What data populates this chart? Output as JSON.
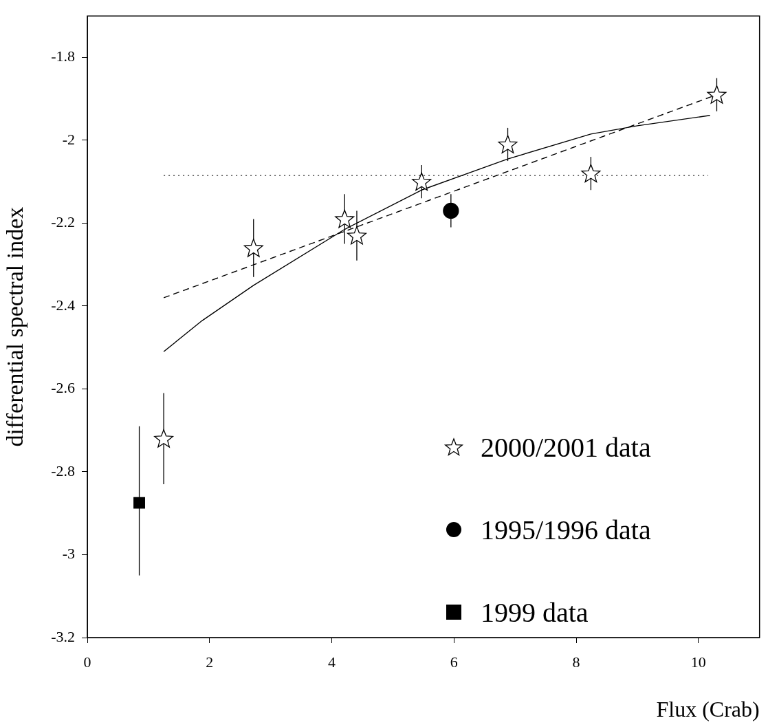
{
  "chart_data": {
    "type": "scatter",
    "xlabel": "Flux (Crab)",
    "ylabel": "differential spectral index",
    "xlim": [
      0,
      11
    ],
    "ylim": [
      -3.2,
      -1.7
    ],
    "xticks": [
      0,
      2,
      4,
      6,
      8,
      10
    ],
    "yticks": [
      -3.2,
      -3,
      -2.8,
      -2.6,
      -2.4,
      -2.2,
      -2,
      -1.8
    ],
    "grid": false,
    "legend": "bottom right",
    "series": [
      {
        "name": "2000/2001 data",
        "marker": "star",
        "color": "#000000",
        "x": [
          1.25,
          2.72,
          4.21,
          4.41,
          5.47,
          6.88,
          8.24,
          10.3
        ],
        "values": [
          -2.72,
          -2.26,
          -2.19,
          -2.23,
          -2.1,
          -2.01,
          -2.08,
          -1.89
        ],
        "errors": [
          [
            -2.83,
            -2.61
          ],
          [
            -2.33,
            -2.19
          ],
          [
            -2.25,
            -2.13
          ],
          [
            -2.29,
            -2.17
          ],
          [
            -2.14,
            -2.06
          ],
          [
            -2.05,
            -1.97
          ],
          [
            -2.12,
            -2.04
          ],
          [
            -1.93,
            -1.85
          ]
        ]
      },
      {
        "name": "1995/1996 data",
        "marker": "circle",
        "color": "#000000",
        "x": [
          5.95
        ],
        "values": [
          -2.17
        ],
        "errors": [
          [
            -2.21,
            -2.13
          ]
        ]
      },
      {
        "name": "1999 data",
        "marker": "square",
        "color": "#000000",
        "x": [
          0.85
        ],
        "values": [
          -2.875
        ],
        "errors": [
          [
            -3.05,
            -2.69
          ]
        ]
      },
      {
        "type": "line",
        "marker": "none",
        "line_style": "solid",
        "color": "#000000",
        "x": [
          1.25,
          1.88,
          2.72,
          4.21,
          5.47,
          6.88,
          8.24,
          9.0,
          10.19
        ],
        "values": [
          -2.51,
          -2.435,
          -2.35,
          -2.215,
          -2.12,
          -2.045,
          -1.985,
          -1.965,
          -1.94
        ]
      },
      {
        "type": "line",
        "marker": "none",
        "line_style": "dashed",
        "color": "#000000",
        "x": [
          1.25,
          10.3
        ],
        "values": [
          -2.38,
          -1.89
        ]
      },
      {
        "type": "line",
        "marker": "none",
        "line_style": "dotted",
        "color": "#555555",
        "x": [
          1.25,
          10.16
        ],
        "values": [
          -2.085,
          -2.085
        ]
      }
    ]
  }
}
